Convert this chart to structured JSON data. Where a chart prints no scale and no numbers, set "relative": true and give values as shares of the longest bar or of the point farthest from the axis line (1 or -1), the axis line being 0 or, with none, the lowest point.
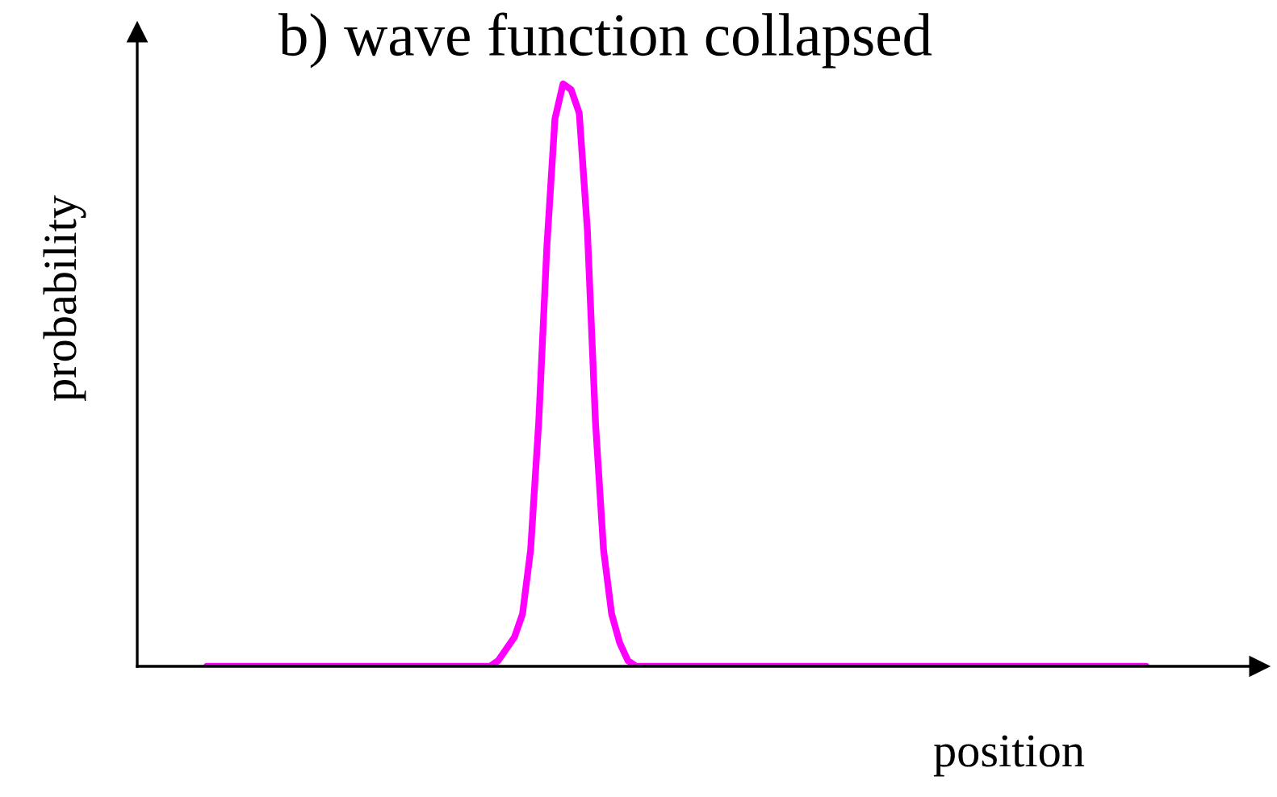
{
  "chart_data": {
    "type": "line",
    "title": "b) wave function collapsed",
    "xlabel": "position",
    "ylabel": "probability",
    "relative": true,
    "color": "#ff00ff",
    "grid": false,
    "legend": false,
    "marker": "none",
    "line_style": "solid",
    "categories": [
      null,
      null,
      null,
      null,
      null,
      null,
      null,
      null,
      null,
      null,
      null,
      null,
      null,
      null,
      null,
      null,
      null,
      null,
      null,
      null,
      null,
      null,
      null,
      null,
      null,
      null,
      null,
      null,
      null,
      null,
      null,
      null,
      null,
      null,
      null,
      null,
      null,
      null,
      null,
      null,
      null,
      null,
      null,
      null,
      null,
      null,
      null,
      null,
      null,
      null,
      null,
      null,
      null,
      null,
      null,
      null,
      null,
      null,
      null,
      null,
      null,
      null,
      null,
      null,
      null,
      null,
      null,
      null,
      null,
      null,
      null,
      null,
      null,
      null,
      null,
      null,
      null,
      null,
      null,
      null,
      null,
      null,
      null,
      null,
      null,
      null,
      null,
      null,
      null,
      null,
      null,
      null,
      null,
      null,
      null,
      null,
      null,
      null,
      null,
      null,
      null,
      null,
      null,
      null,
      null,
      null,
      null,
      null,
      null,
      null,
      null,
      null,
      null,
      null,
      null,
      null,
      null
    ],
    "values": [
      0,
      0,
      0,
      0,
      0,
      0,
      0,
      0,
      0,
      0,
      0,
      0,
      0,
      0,
      0,
      0,
      0,
      0,
      0,
      0,
      0,
      0,
      0,
      0,
      0,
      0,
      0,
      0,
      0,
      0,
      0,
      0,
      0,
      0,
      0,
      0,
      0.01,
      0.03,
      0.05,
      0.09,
      0.2,
      0.42,
      0.72,
      0.94,
      1.0,
      0.99,
      0.95,
      0.75,
      0.42,
      0.2,
      0.09,
      0.04,
      0.01,
      0,
      0,
      0,
      0,
      0,
      0,
      0,
      0,
      0,
      0,
      0,
      0,
      0,
      0,
      0,
      0,
      0,
      0,
      0,
      0,
      0,
      0,
      0,
      0,
      0,
      0,
      0,
      0,
      0,
      0,
      0,
      0,
      0,
      0,
      0,
      0,
      0,
      0,
      0,
      0,
      0,
      0,
      0,
      0,
      0,
      0,
      0,
      0,
      0,
      0,
      0,
      0,
      0,
      0,
      0,
      0,
      0,
      0,
      0,
      0,
      0,
      0,
      0,
      0
    ]
  }
}
